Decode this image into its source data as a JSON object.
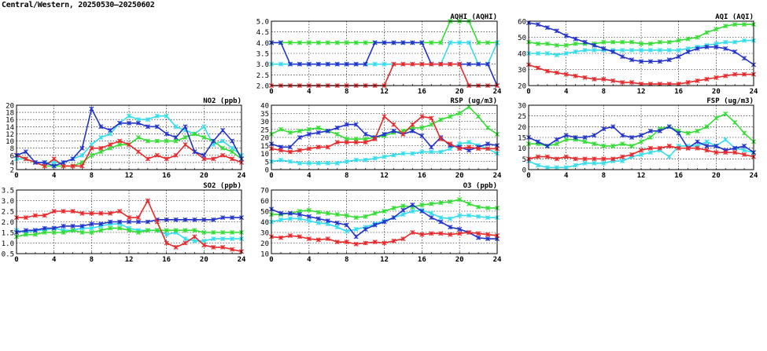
{
  "header": {
    "title": "Central/Western, 20250530–20250602"
  },
  "colors": {
    "red": "#e8282a",
    "green": "#33dd33",
    "blue": "#2233cc",
    "cyan": "#33ddee"
  },
  "chart_data": [
    {
      "id": "aqhi",
      "type": "line",
      "title": "AQHI (AQHI)",
      "ylim": [
        2,
        5
      ],
      "yticks": [
        "2.0",
        "2.5",
        "3.0",
        "3.5",
        "4.0",
        "4.5",
        "5.0"
      ],
      "xlim": [
        0,
        24
      ],
      "xticks": [
        "0",
        "4",
        "8",
        "12",
        "16",
        "20",
        "24"
      ],
      "grid": true,
      "series": [
        {
          "color": "green",
          "values": [
            4,
            4,
            4,
            4,
            4,
            4,
            4,
            4,
            4,
            4,
            4,
            4,
            4,
            4,
            4,
            4,
            4,
            4,
            4,
            5,
            5,
            5,
            4,
            4,
            4
          ]
        },
        {
          "color": "cyan",
          "values": [
            3,
            3,
            3,
            3,
            3,
            3,
            3,
            3,
            3,
            3,
            3,
            3,
            3,
            3,
            3,
            3,
            3,
            3,
            3,
            4,
            4,
            4,
            3,
            3,
            4
          ]
        },
        {
          "color": "blue",
          "values": [
            4,
            4,
            3,
            3,
            3,
            3,
            3,
            3,
            3,
            3,
            3,
            4,
            4,
            4,
            4,
            4,
            4,
            3,
            3,
            3,
            3,
            3,
            3,
            3,
            2
          ]
        },
        {
          "color": "red",
          "values": [
            2,
            2,
            2,
            2,
            2,
            2,
            2,
            2,
            2,
            2,
            2,
            2,
            2,
            3,
            3,
            3,
            3,
            3,
            3,
            3,
            3,
            2,
            2,
            2,
            2
          ]
        }
      ]
    },
    {
      "id": "aqi",
      "type": "line",
      "title": "AQI (AQI)",
      "ylim": [
        20,
        60
      ],
      "yticks": [
        "20",
        "30",
        "40",
        "50",
        "60"
      ],
      "xlim": [
        0,
        24
      ],
      "xticks": [
        "0",
        "4",
        "8",
        "12",
        "16",
        "20",
        "24"
      ],
      "grid": true,
      "series": [
        {
          "color": "green",
          "values": [
            47,
            46,
            46,
            45,
            45,
            46,
            46,
            46,
            47,
            47,
            47,
            47,
            46,
            46,
            47,
            47,
            48,
            49,
            50,
            53,
            55,
            57,
            58,
            58,
            58
          ]
        },
        {
          "color": "cyan",
          "values": [
            40,
            40,
            40,
            39,
            40,
            41,
            42,
            42,
            42,
            42,
            42,
            42,
            42,
            42,
            42,
            42,
            42,
            43,
            44,
            45,
            46,
            47,
            47,
            48,
            48
          ]
        },
        {
          "color": "blue",
          "values": [
            59,
            58,
            56,
            54,
            51,
            49,
            47,
            45,
            43,
            41,
            38,
            36,
            35,
            35,
            35,
            36,
            38,
            41,
            43,
            44,
            44,
            43,
            41,
            37,
            33
          ]
        },
        {
          "color": "red",
          "values": [
            33,
            31,
            29,
            28,
            27,
            26,
            25,
            24,
            24,
            23,
            22,
            22,
            21,
            21,
            21,
            21,
            21,
            22,
            23,
            24,
            25,
            26,
            27,
            27,
            27
          ]
        }
      ]
    },
    {
      "id": "no2",
      "type": "line",
      "title": "NO2 (ppb)",
      "ylim": [
        2,
        20
      ],
      "yticks": [
        "2",
        "4",
        "6",
        "8",
        "10",
        "12",
        "14",
        "16",
        "18",
        "20"
      ],
      "xlim": [
        0,
        24
      ],
      "xticks": [
        "0",
        "4",
        "8",
        "12",
        "16",
        "20",
        "24"
      ],
      "grid": true,
      "series": [
        {
          "color": "cyan",
          "values": [
            5,
            5,
            4,
            4,
            4,
            4,
            5,
            6,
            9,
            11,
            12,
            15,
            17,
            16,
            16,
            17,
            17,
            14,
            13,
            12,
            14,
            9,
            10,
            8,
            6
          ]
        },
        {
          "color": "green",
          "values": [
            6,
            5,
            4,
            3,
            3,
            3,
            3,
            4,
            6,
            7,
            8,
            9,
            9,
            11,
            10,
            10,
            10,
            10,
            11,
            12,
            11,
            10,
            8,
            7,
            5
          ]
        },
        {
          "color": "red",
          "values": [
            6,
            5,
            4,
            3,
            5,
            3,
            3,
            3,
            8,
            8,
            9,
            10,
            9,
            7,
            5,
            6,
            5,
            6,
            9,
            7,
            5,
            5,
            6,
            5,
            4
          ]
        },
        {
          "color": "blue",
          "values": [
            6,
            7,
            4,
            4,
            3,
            4,
            5,
            8,
            19,
            14,
            13,
            15,
            15,
            15,
            14,
            14,
            12,
            11,
            14,
            7,
            6,
            10,
            13,
            10,
            5
          ]
        }
      ]
    },
    {
      "id": "rsp",
      "type": "line",
      "title": "RSP (ug/m3)",
      "ylim": [
        0,
        40
      ],
      "yticks": [
        "0",
        "5",
        "10",
        "15",
        "20",
        "25",
        "30",
        "35",
        "40"
      ],
      "xlim": [
        0,
        24
      ],
      "xticks": [
        "0",
        "4",
        "8",
        "12",
        "16",
        "20",
        "24"
      ],
      "grid": true,
      "series": [
        {
          "color": "green",
          "values": [
            22,
            25,
            23,
            24,
            25,
            26,
            24,
            22,
            19,
            19,
            19,
            20,
            21,
            23,
            24,
            26,
            26,
            28,
            31,
            33,
            35,
            39,
            33,
            26,
            22
          ]
        },
        {
          "color": "cyan",
          "values": [
            5,
            6,
            5,
            4,
            4,
            4,
            4,
            4,
            5,
            6,
            6,
            7,
            8,
            9,
            10,
            10,
            11,
            11,
            11,
            13,
            16,
            17,
            15,
            13,
            10
          ]
        },
        {
          "color": "blue",
          "values": [
            16,
            14,
            14,
            20,
            22,
            23,
            24,
            26,
            28,
            28,
            22,
            20,
            22,
            24,
            22,
            24,
            21,
            14,
            20,
            15,
            14,
            12,
            14,
            16,
            15
          ]
        },
        {
          "color": "red",
          "values": [
            13,
            12,
            11,
            12,
            13,
            14,
            14,
            17,
            17,
            17,
            17,
            19,
            33,
            28,
            22,
            28,
            33,
            32,
            19,
            16,
            13,
            14,
            13,
            13,
            13
          ]
        }
      ]
    },
    {
      "id": "fsp",
      "type": "line",
      "title": "FSP (ug/m3)",
      "ylim": [
        0,
        30
      ],
      "yticks": [
        "0",
        "5",
        "10",
        "15",
        "20",
        "25",
        "30"
      ],
      "xlim": [
        0,
        24
      ],
      "xticks": [
        "0",
        "4",
        "8",
        "12",
        "16",
        "20",
        "24"
      ],
      "grid": true,
      "series": [
        {
          "color": "green",
          "values": [
            12,
            12,
            11,
            12,
            14,
            14,
            13,
            12,
            11,
            11,
            12,
            11,
            13,
            15,
            19,
            20,
            18,
            17,
            18,
            20,
            24,
            26,
            22,
            17,
            13
          ]
        },
        {
          "color": "cyan",
          "values": [
            4,
            2,
            1,
            1,
            1,
            2,
            3,
            3,
            3,
            4,
            4,
            6,
            7,
            8,
            9,
            6,
            11,
            11,
            11,
            13,
            11,
            14,
            10,
            9,
            8
          ]
        },
        {
          "color": "blue",
          "values": [
            15,
            13,
            11,
            14,
            16,
            15,
            15,
            16,
            19,
            20,
            16,
            15,
            16,
            18,
            18,
            20,
            17,
            10,
            13,
            11,
            11,
            9,
            10,
            11,
            8
          ]
        },
        {
          "color": "red",
          "values": [
            5,
            6,
            6,
            5,
            6,
            5,
            5,
            5,
            5,
            5,
            6,
            7,
            9,
            10,
            10,
            11,
            10,
            10,
            10,
            9,
            8,
            8,
            8,
            7,
            6
          ]
        }
      ]
    },
    {
      "id": "so2",
      "type": "line",
      "title": "SO2 (ppb)",
      "ylim": [
        0.5,
        3.5
      ],
      "yticks": [
        "0.5",
        "1.0",
        "1.5",
        "2.0",
        "2.5",
        "3.0",
        "3.5"
      ],
      "xlim": [
        0,
        24
      ],
      "xticks": [
        "0",
        "4",
        "8",
        "12",
        "16",
        "20",
        "24"
      ],
      "grid": true,
      "series": [
        {
          "color": "cyan",
          "values": [
            1.6,
            1.5,
            1.6,
            1.6,
            1.7,
            1.6,
            1.6,
            1.7,
            1.7,
            1.8,
            1.9,
            1.9,
            1.7,
            1.6,
            1.6,
            1.6,
            1.4,
            1.5,
            1.2,
            1.1,
            1.1,
            1.2,
            1.2,
            1.2,
            1.2
          ]
        },
        {
          "color": "green",
          "values": [
            1.3,
            1.4,
            1.4,
            1.5,
            1.5,
            1.5,
            1.6,
            1.5,
            1.5,
            1.6,
            1.7,
            1.7,
            1.6,
            1.5,
            1.6,
            1.6,
            1.6,
            1.6,
            1.6,
            1.6,
            1.5,
            1.5,
            1.5,
            1.5,
            1.5
          ]
        },
        {
          "color": "blue",
          "values": [
            1.5,
            1.6,
            1.6,
            1.7,
            1.7,
            1.8,
            1.8,
            1.8,
            1.9,
            1.9,
            2.0,
            2.0,
            2.0,
            2.0,
            2.0,
            2.1,
            2.1,
            2.1,
            2.1,
            2.1,
            2.1,
            2.1,
            2.2,
            2.2,
            2.2
          ]
        },
        {
          "color": "red",
          "values": [
            2.2,
            2.2,
            2.3,
            2.3,
            2.5,
            2.5,
            2.5,
            2.4,
            2.4,
            2.4,
            2.4,
            2.5,
            2.2,
            2.2,
            3.0,
            2.0,
            1.0,
            0.8,
            1.0,
            1.3,
            0.9,
            0.8,
            0.8,
            0.7,
            0.6
          ]
        }
      ]
    },
    {
      "id": "o3",
      "type": "line",
      "title": "O3 (ppb)",
      "ylim": [
        10,
        70
      ],
      "yticks": [
        "10",
        "20",
        "30",
        "40",
        "50",
        "60",
        "70"
      ],
      "xlim": [
        0,
        24
      ],
      "xticks": [
        "0",
        "4",
        "8",
        "12",
        "16",
        "20",
        "24"
      ],
      "grid": true,
      "series": [
        {
          "color": "green",
          "values": [
            47,
            47,
            48,
            50,
            51,
            49,
            48,
            47,
            46,
            44,
            45,
            48,
            50,
            53,
            55,
            54,
            56,
            57,
            58,
            59,
            61,
            57,
            54,
            53,
            53
          ]
        },
        {
          "color": "cyan",
          "values": [
            40,
            42,
            43,
            43,
            41,
            39,
            38,
            35,
            31,
            33,
            35,
            38,
            41,
            44,
            47,
            50,
            51,
            48,
            44,
            43,
            46,
            46,
            45,
            44,
            44
          ]
        },
        {
          "color": "blue",
          "values": [
            52,
            48,
            48,
            47,
            45,
            43,
            41,
            39,
            37,
            26,
            33,
            37,
            40,
            44,
            51,
            56,
            50,
            44,
            40,
            35,
            33,
            30,
            25,
            24,
            24
          ]
        },
        {
          "color": "red",
          "values": [
            26,
            25,
            27,
            26,
            24,
            23,
            24,
            21,
            21,
            19,
            20,
            21,
            20,
            22,
            24,
            30,
            28,
            29,
            29,
            28,
            29,
            30,
            29,
            28,
            27
          ]
        }
      ]
    }
  ]
}
